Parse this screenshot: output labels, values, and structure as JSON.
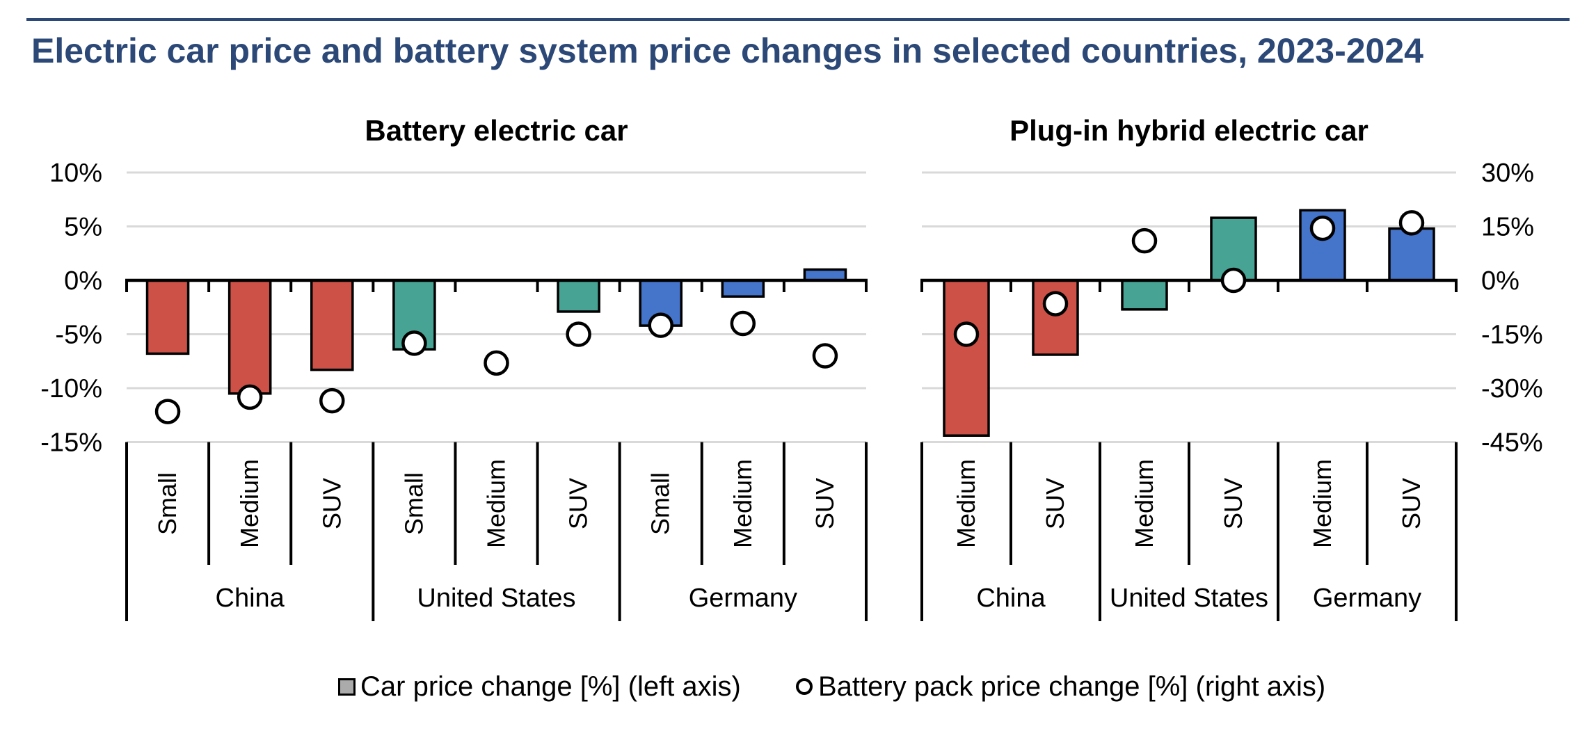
{
  "page": {
    "title": "Electric car price and battery system price changes in selected countries, 2023-2024",
    "title_color": "#2B4877"
  },
  "legend": {
    "items": [
      {
        "label": "Car price change [%] (left axis)",
        "marker": "square",
        "marker_fill": "#ABABAB"
      },
      {
        "label": "Battery pack price change [%] (right axis)",
        "marker": "circle",
        "marker_fill": "#FFFFFF"
      }
    ]
  },
  "colors": {
    "China": "#CD5147",
    "United States": "#47A494",
    "Germany": "#4574CB",
    "gridline": "#D9D9D9",
    "axis": "#000000",
    "accent_title": "#2B4877"
  },
  "axes": {
    "left": {
      "labels": [
        "10%",
        "5%",
        "0%",
        "-5%",
        "-10%",
        "-15%"
      ],
      "ticks": [
        10,
        5,
        0,
        -5,
        -10,
        -15
      ],
      "side": "left"
    },
    "right": {
      "labels": [
        "30%",
        "15%",
        "0%",
        "-15%",
        "-30%",
        "-45%"
      ],
      "ticks": [
        30,
        15,
        0,
        -15,
        -30,
        -45
      ],
      "side": "right",
      "right_units_per_left_unit": 3
    }
  },
  "chart_data": [
    {
      "type": "bar+scatter",
      "title": "Battery electric car",
      "bar_series_name": "Car price change [%] (left axis)",
      "circle_series_name": "Battery pack price change [%] (right axis)",
      "left_axis_range": [
        -15,
        10
      ],
      "right_axis_range": [
        -45,
        30
      ],
      "groups": [
        {
          "country": "China",
          "items": [
            {
              "size": "Small",
              "car_price_change_pct": -6.8,
              "battery_pack_price_change_pct": -36.5
            },
            {
              "size": "Medium",
              "car_price_change_pct": -10.5,
              "battery_pack_price_change_pct": -32.5
            },
            {
              "size": "SUV",
              "car_price_change_pct": -8.3,
              "battery_pack_price_change_pct": -33.5
            }
          ]
        },
        {
          "country": "United States",
          "items": [
            {
              "size": "Small",
              "car_price_change_pct": -6.4,
              "battery_pack_price_change_pct": -17.5
            },
            {
              "size": "Medium",
              "car_price_change_pct": 0,
              "battery_pack_price_change_pct": -23
            },
            {
              "size": "SUV",
              "car_price_change_pct": -2.9,
              "battery_pack_price_change_pct": -15
            }
          ]
        },
        {
          "country": "Germany",
          "items": [
            {
              "size": "Small",
              "car_price_change_pct": -4.2,
              "battery_pack_price_change_pct": -12.5
            },
            {
              "size": "Medium",
              "car_price_change_pct": -1.5,
              "battery_pack_price_change_pct": -12
            },
            {
              "size": "SUV",
              "car_price_change_pct": 1,
              "battery_pack_price_change_pct": -21
            }
          ]
        }
      ]
    },
    {
      "type": "bar+scatter",
      "title": "Plug-in hybrid electric car",
      "bar_series_name": "Car price change [%] (left axis)",
      "circle_series_name": "Battery pack price change [%] (right axis)",
      "left_axis_range": [
        -15,
        10
      ],
      "right_axis_range": [
        -45,
        30
      ],
      "groups": [
        {
          "country": "China",
          "items": [
            {
              "size": "Medium",
              "car_price_change_pct": -14.4,
              "battery_pack_price_change_pct": -15
            },
            {
              "size": "SUV",
              "car_price_change_pct": -6.9,
              "battery_pack_price_change_pct": -6.5
            }
          ]
        },
        {
          "country": "United States",
          "items": [
            {
              "size": "Medium",
              "car_price_change_pct": -2.7,
              "battery_pack_price_change_pct": 11
            },
            {
              "size": "SUV",
              "car_price_change_pct": 5.8,
              "battery_pack_price_change_pct": 0
            }
          ]
        },
        {
          "country": "Germany",
          "items": [
            {
              "size": "Medium",
              "car_price_change_pct": 6.5,
              "battery_pack_price_change_pct": 14.5
            },
            {
              "size": "SUV",
              "car_price_change_pct": 4.8,
              "battery_pack_price_change_pct": 16
            }
          ]
        }
      ]
    }
  ]
}
